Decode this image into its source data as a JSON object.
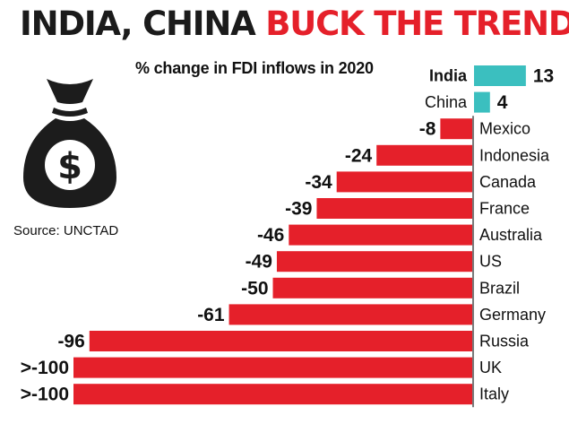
{
  "headline": {
    "part1": "INDIA, CHINA",
    "part2": "BUCK THE TREND"
  },
  "chart_data": {
    "type": "bar",
    "title": "% change in FDI inflows in 2020",
    "categories": [
      "India",
      "China",
      "Mexico",
      "Indonesia",
      "Canada",
      "France",
      "Australia",
      "US",
      "Brazil",
      "Germany",
      "Russia",
      "UK",
      "Italy"
    ],
    "values": [
      13,
      4,
      -8,
      -24,
      -34,
      -39,
      -46,
      -49,
      -50,
      -61,
      -96,
      -100,
      -100
    ],
    "value_labels": [
      "13",
      "4",
      "-8",
      "-24",
      "-34",
      "-39",
      "-46",
      "-49",
      "-50",
      "-61",
      "-96",
      ">-100",
      ">-100"
    ],
    "colors": {
      "positive": "#3bbfbf",
      "negative": "#e5202a"
    }
  },
  "source": "Source: UNCTAD",
  "icons": {
    "bag": "money-bag-icon"
  }
}
